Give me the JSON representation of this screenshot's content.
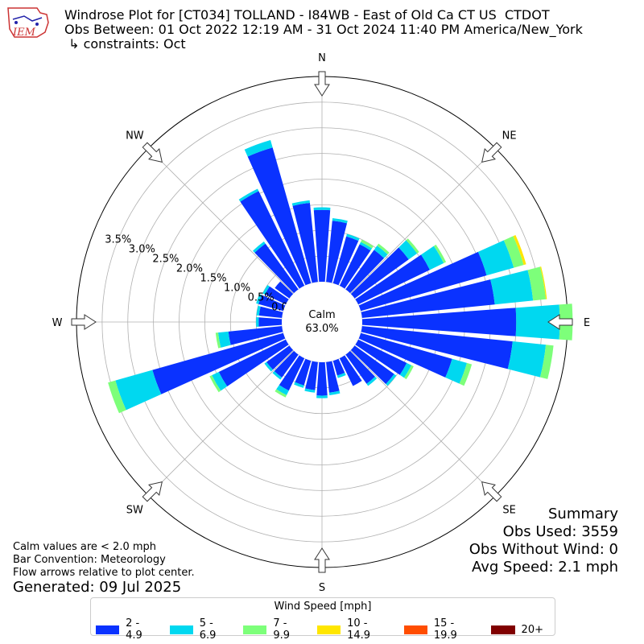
{
  "title": {
    "line1": "Windrose Plot for [CT034] TOLLAND - I84WB - East of Old Ca CT US  CTDOT",
    "line2": "Obs Between: 01 Oct 2022 12:19 AM - 31 Oct 2024 11:40 PM America/New_York",
    "line3": " ↳ constraints: Oct"
  },
  "logo": {
    "text": "IEM"
  },
  "compass": [
    "N",
    "NE",
    "E",
    "SE",
    "S",
    "SW",
    "W",
    "NW"
  ],
  "calm": {
    "label": "Calm",
    "value": "63.0%"
  },
  "notes": [
    "Calm values are < 2.0 mph",
    "Bar Convention: Meteorology",
    "Flow arrows relative to plot center."
  ],
  "generated": "Generated: 09 Jul 2025",
  "summary": {
    "title": "Summary",
    "obs_used": "Obs Used: 3559",
    "obs_without_wind": "Obs Without Wind: 0",
    "avg_speed": "Avg Speed: 2.1 mph"
  },
  "legend": {
    "title": "Wind Speed [mph]",
    "items": [
      {
        "label": "2 - 4.9",
        "color": "#0a32ff"
      },
      {
        "label": "5 - 6.9",
        "color": "#00d8f0"
      },
      {
        "label": "7 - 9.9",
        "color": "#7dff7a"
      },
      {
        "label": "10 - 14.9",
        "color": "#ffe600"
      },
      {
        "label": "15 - 19.9",
        "color": "#ff4d00"
      },
      {
        "label": "20+",
        "color": "#800000"
      }
    ]
  },
  "chart_data": {
    "type": "windrose",
    "radial_ticks": [
      "0.0%",
      "0.5%",
      "1.0%",
      "1.5%",
      "2.0%",
      "2.5%",
      "3.0%",
      "3.5%"
    ],
    "rmax": 4.0,
    "calm_percent": 63.0,
    "directions_deg": [
      0,
      10,
      20,
      30,
      40,
      50,
      60,
      70,
      80,
      90,
      100,
      110,
      120,
      130,
      140,
      150,
      160,
      170,
      180,
      190,
      200,
      210,
      220,
      230,
      240,
      250,
      260,
      270,
      280,
      290,
      300,
      310,
      320,
      330,
      340,
      350
    ],
    "series": [
      {
        "name": "2 - 4.9",
        "values": [
          1.4,
          1.2,
          0.95,
          0.9,
          0.95,
          1.3,
          1.55,
          2.55,
          2.6,
          3.0,
          2.95,
          1.85,
          1.05,
          0.95,
          0.7,
          0.6,
          0.3,
          0.6,
          0.65,
          0.55,
          0.5,
          0.7,
          0.55,
          0.55,
          1.45,
          2.65,
          1.05,
          0.45,
          0.45,
          0.5,
          0.45,
          0.35,
          1.1,
          2.05,
          2.75,
          1.55
        ]
      },
      {
        "name": "5 - 6.9",
        "values": [
          0.05,
          0.05,
          0.05,
          0.05,
          0.1,
          0.2,
          0.3,
          0.55,
          0.75,
          0.85,
          0.65,
          0.3,
          0.1,
          0.05,
          0.05,
          0.0,
          0.05,
          0.05,
          0.05,
          0.05,
          0.05,
          0.1,
          0.05,
          0.05,
          0.15,
          0.75,
          0.2,
          0.05,
          0.05,
          0.05,
          0.05,
          0.0,
          0.05,
          0.05,
          0.15,
          0.05
        ]
      },
      {
        "name": "7 - 9.9",
        "values": [
          0,
          0,
          0,
          0.05,
          0.05,
          0.05,
          0.05,
          0.2,
          0.25,
          0.25,
          0.15,
          0.1,
          0.05,
          0,
          0,
          0,
          0,
          0,
          0,
          0,
          0,
          0.05,
          0,
          0,
          0.05,
          0.15,
          0.05,
          0,
          0,
          0,
          0,
          0,
          0,
          0,
          0,
          0
        ]
      },
      {
        "name": "10 - 14.9",
        "values": [
          0,
          0,
          0,
          0,
          0,
          0,
          0,
          0.05,
          0.02,
          0,
          0,
          0,
          0,
          0,
          0,
          0,
          0,
          0,
          0,
          0,
          0,
          0,
          0,
          0,
          0,
          0,
          0,
          0,
          0,
          0,
          0,
          0,
          0,
          0,
          0,
          0
        ]
      },
      {
        "name": "15 - 19.9",
        "values": [
          0,
          0,
          0,
          0,
          0,
          0,
          0,
          0,
          0,
          0,
          0,
          0,
          0,
          0,
          0,
          0,
          0,
          0,
          0,
          0,
          0,
          0,
          0,
          0,
          0,
          0,
          0,
          0,
          0,
          0,
          0,
          0,
          0,
          0,
          0,
          0
        ]
      },
      {
        "name": "20+",
        "values": [
          0,
          0,
          0,
          0,
          0,
          0,
          0,
          0,
          0,
          0,
          0,
          0,
          0,
          0,
          0,
          0,
          0,
          0,
          0,
          0,
          0,
          0,
          0,
          0,
          0,
          0,
          0,
          0,
          0,
          0,
          0,
          0,
          0,
          0,
          0,
          0
        ]
      }
    ]
  }
}
